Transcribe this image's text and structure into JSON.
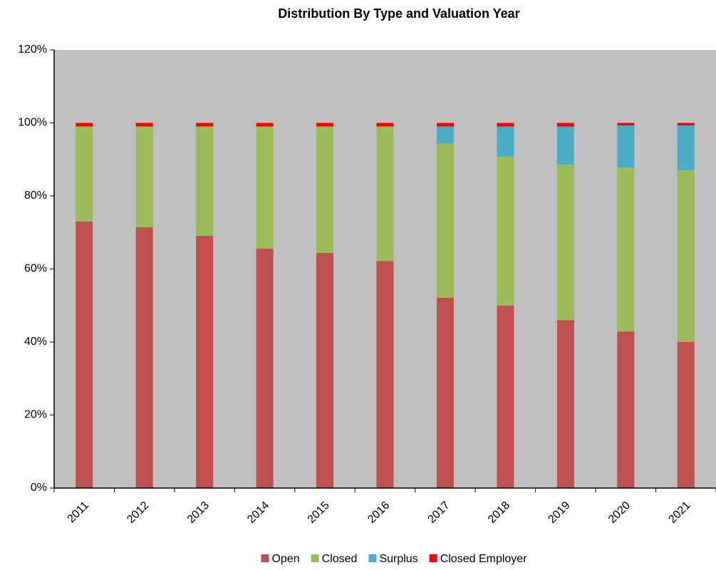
{
  "chart_data": {
    "type": "stacked_bar",
    "title": "Distribution By Type and Valuation Year",
    "categories": [
      "2011",
      "2012",
      "2013",
      "2014",
      "2015",
      "2016",
      "2017",
      "2018",
      "2019",
      "2020",
      "2021"
    ],
    "series": [
      {
        "name": "Open",
        "color": "#c0504d",
        "values": [
          73.0,
          71.4,
          69.1,
          65.6,
          64.4,
          62.2,
          52.1,
          50.0,
          46.0,
          42.9,
          40.0
        ]
      },
      {
        "name": "Closed",
        "color": "#9bbb59",
        "values": [
          26.0,
          27.6,
          29.9,
          33.4,
          34.6,
          36.8,
          42.3,
          40.7,
          42.6,
          44.9,
          47.0
        ]
      },
      {
        "name": "Surplus",
        "color": "#4bacc6",
        "values": [
          0,
          0,
          0,
          0,
          0,
          0,
          4.6,
          8.3,
          10.4,
          11.5,
          12.3
        ]
      },
      {
        "name": "Closed Employer",
        "color": "#ff0000",
        "values": [
          1.0,
          1.0,
          1.0,
          1.0,
          1.0,
          1.0,
          1.0,
          1.0,
          1.0,
          0.7,
          0.7
        ]
      }
    ],
    "ylim": [
      0,
      120
    ],
    "yticks": [
      {
        "value": 0,
        "label": "0%"
      },
      {
        "value": 20,
        "label": "20%"
      },
      {
        "value": 40,
        "label": "40%"
      },
      {
        "value": 60,
        "label": "60%"
      },
      {
        "value": 80,
        "label": "80%"
      },
      {
        "value": 100,
        "label": "100%"
      },
      {
        "value": 120,
        "label": "120%"
      }
    ],
    "plot_background": "#c0c0c0",
    "grid": false,
    "legend": "bottom"
  }
}
